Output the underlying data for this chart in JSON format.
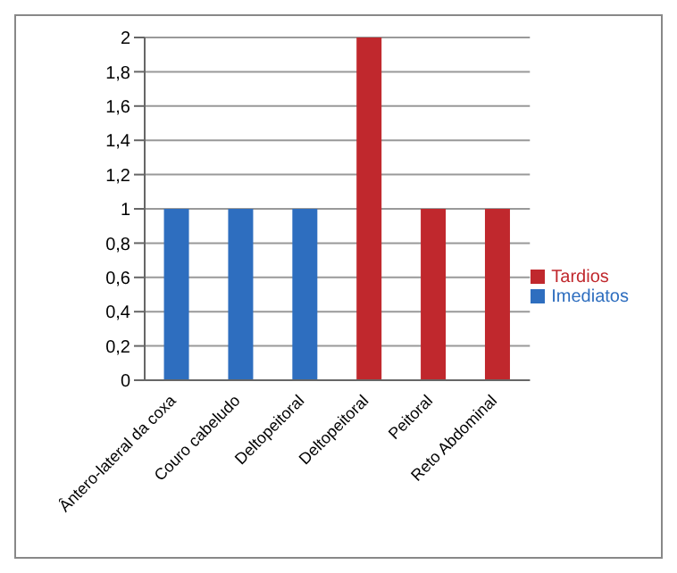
{
  "chart_data": {
    "type": "bar",
    "categories": [
      "Ântero-lateral da coxa",
      "Couro cabeludo",
      "Deltopeitoral",
      "Deltopeitoral",
      "Peitoral",
      "Reto Abdominal"
    ],
    "series": [
      {
        "name": "Tardios",
        "color": "#c0282d",
        "values": [
          null,
          null,
          null,
          2,
          1,
          1
        ]
      },
      {
        "name": "Imediatos",
        "color": "#2e6ebf",
        "values": [
          1,
          1,
          1,
          null,
          null,
          null
        ]
      }
    ],
    "stacked": true,
    "ylim": [
      0,
      2
    ],
    "yticks": [
      0,
      {
        "value": 0.2,
        "label": "0,2"
      },
      {
        "value": 0.4,
        "label": "0,4"
      },
      {
        "value": 0.6,
        "label": "0,6"
      },
      {
        "value": 0.8,
        "label": "0,8"
      },
      1,
      {
        "value": 1.2,
        "label": "1,2"
      },
      {
        "value": 1.4,
        "label": "1,4"
      },
      {
        "value": 1.6,
        "label": "1,6"
      },
      {
        "value": 1.8,
        "label": "1,8"
      },
      2
    ],
    "grid": "y",
    "legend": "right"
  }
}
